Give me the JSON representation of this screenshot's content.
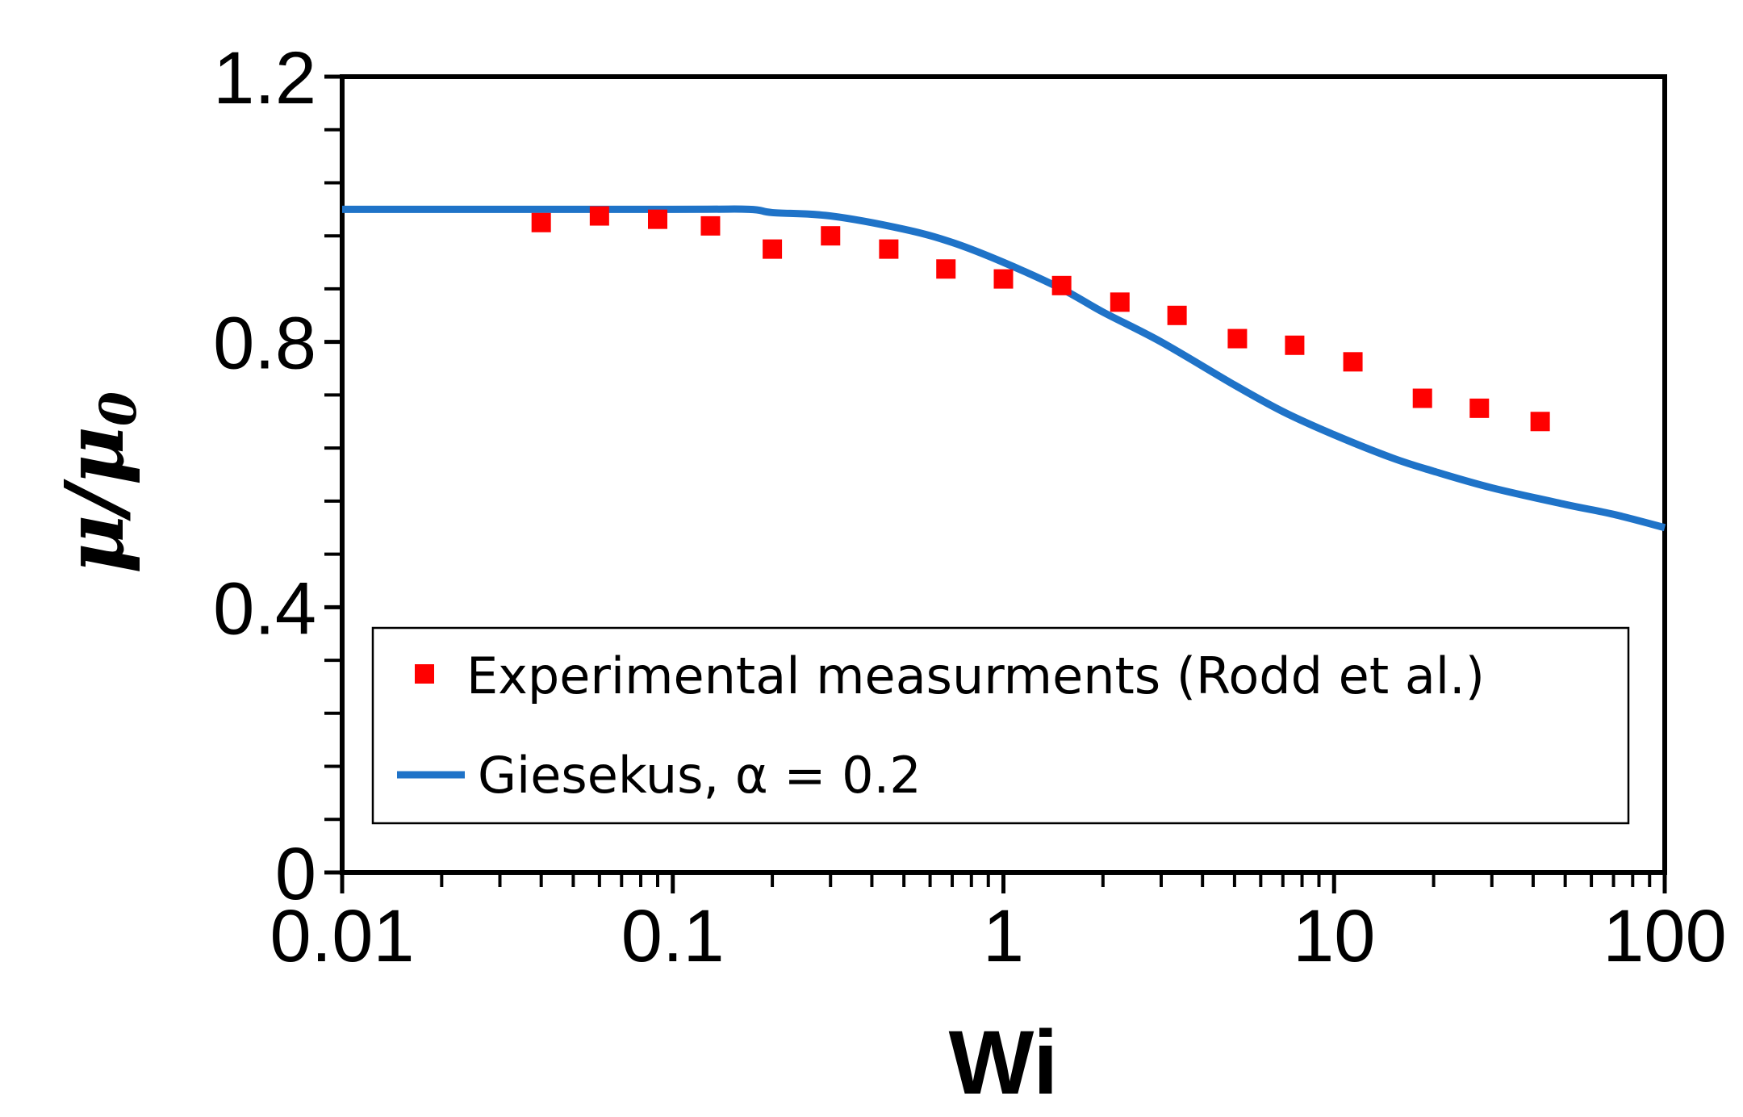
{
  "chart_data": {
    "type": "scatter",
    "title": "",
    "xlabel": "Wi",
    "ylabel": "μ/μ",
    "ylabel_subscript": "0",
    "xscale": "log",
    "xlim": [
      0.01,
      100
    ],
    "ylim": [
      0,
      1.2
    ],
    "x_ticks": [
      {
        "value": 0.01,
        "label": "0.01"
      },
      {
        "value": 0.1,
        "label": "0.1"
      },
      {
        "value": 1,
        "label": "1"
      },
      {
        "value": 10,
        "label": "10"
      },
      {
        "value": 100,
        "label": "100"
      }
    ],
    "y_ticks": [
      {
        "value": 0,
        "label": "0"
      },
      {
        "value": 0.4,
        "label": "0.4"
      },
      {
        "value": 0.8,
        "label": "0.8"
      },
      {
        "value": 1.2,
        "label": "1.2"
      }
    ],
    "y_minor_step": 0.08,
    "grid": false,
    "legend_position": "bottom-left",
    "series": [
      {
        "name": "Experimental measurments (Rodd et al.)",
        "kind": "markers",
        "color": "#ff0000",
        "x": [
          0.04,
          0.06,
          0.09,
          0.13,
          0.2,
          0.3,
          0.45,
          0.67,
          1.0,
          1.5,
          2.25,
          3.35,
          5.1,
          7.6,
          11.4,
          18.5,
          27.5,
          42.0
        ],
        "y": [
          0.98,
          0.99,
          0.985,
          0.975,
          0.94,
          0.96,
          0.94,
          0.91,
          0.895,
          0.885,
          0.86,
          0.84,
          0.805,
          0.795,
          0.77,
          0.715,
          0.7,
          0.68
        ]
      },
      {
        "name": "Giesekus, α = 0.2",
        "kind": "line",
        "color": "#1f73c8",
        "x": [
          0.01,
          0.1,
          0.17,
          0.2,
          0.3,
          0.5,
          0.7,
          1.0,
          1.5,
          2.0,
          3.0,
          5.0,
          7.0,
          10.0,
          15.0,
          20.0,
          30.0,
          50.0,
          70.0,
          100.0
        ],
        "y": [
          1.0,
          1.0,
          1.0,
          0.995,
          0.99,
          0.97,
          0.95,
          0.92,
          0.88,
          0.845,
          0.8,
          0.735,
          0.695,
          0.66,
          0.625,
          0.605,
          0.58,
          0.555,
          0.54,
          0.52
        ]
      }
    ]
  }
}
